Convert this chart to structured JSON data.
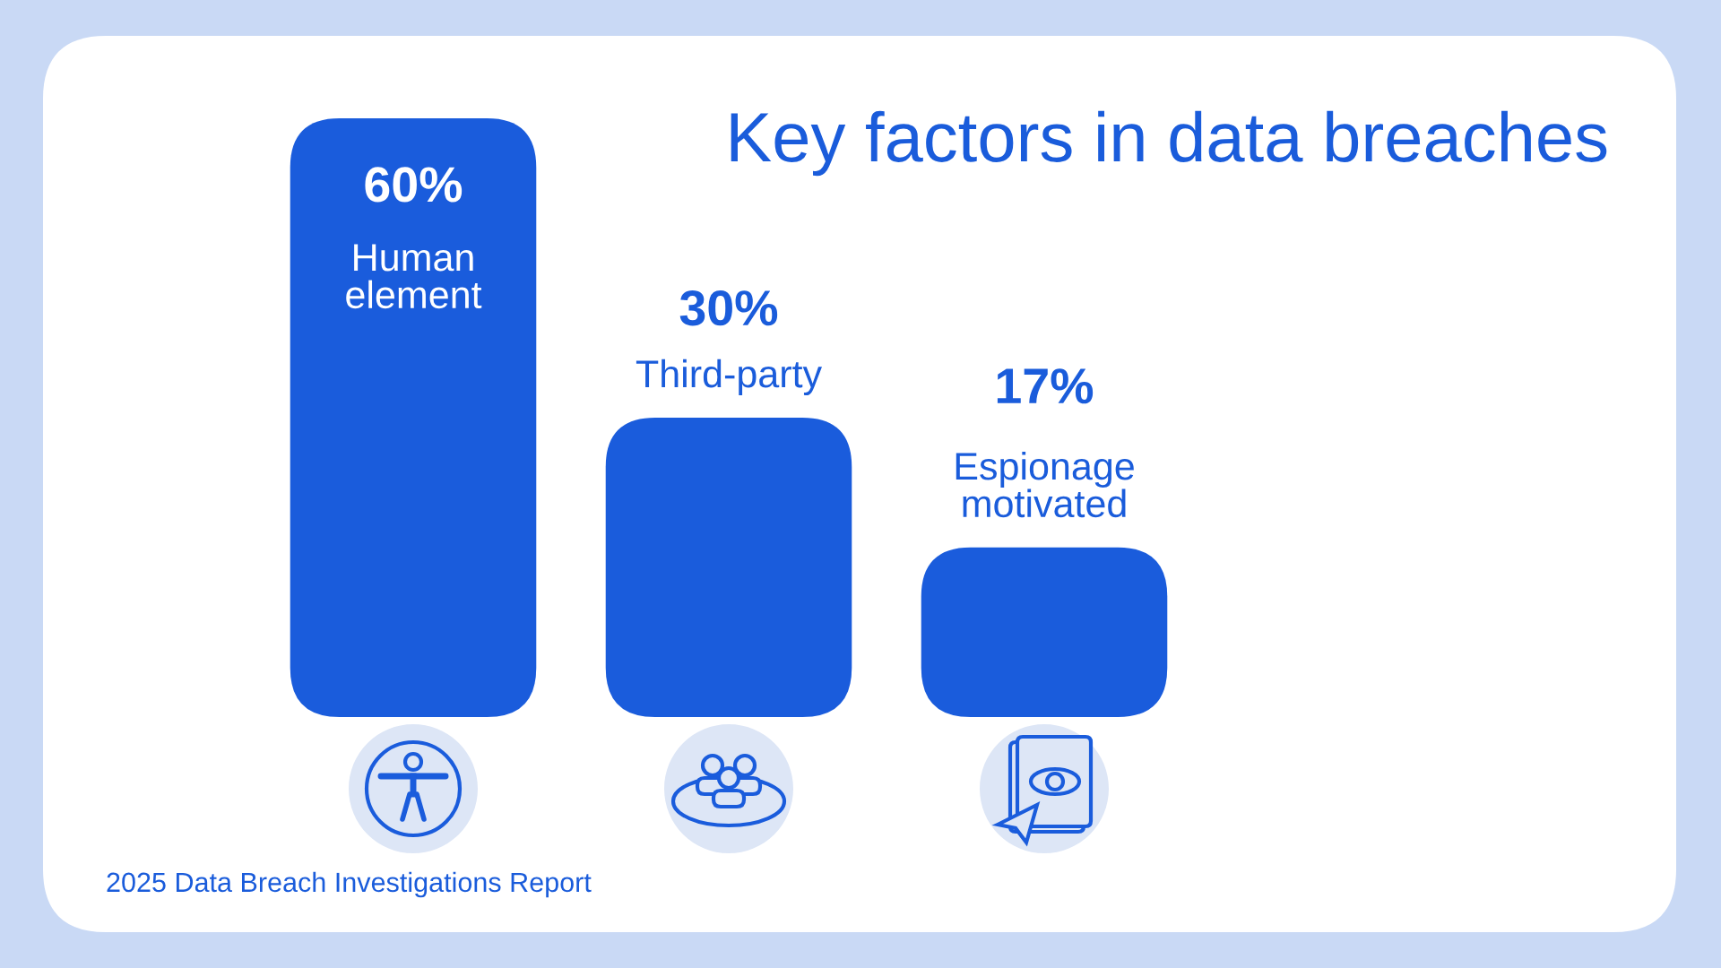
{
  "chart_data": {
    "type": "bar",
    "title": "Key factors in data breaches",
    "categories": [
      "Human\nelement",
      "Third-party",
      "Espionage\nmotivated"
    ],
    "values": [
      60,
      30,
      17
    ],
    "value_labels": [
      "60%",
      "30%",
      "17%"
    ],
    "color": "#1a5cdc",
    "tick_labels": false,
    "annotations": [
      "2025 Data Breach Investigations Report"
    ]
  }
}
